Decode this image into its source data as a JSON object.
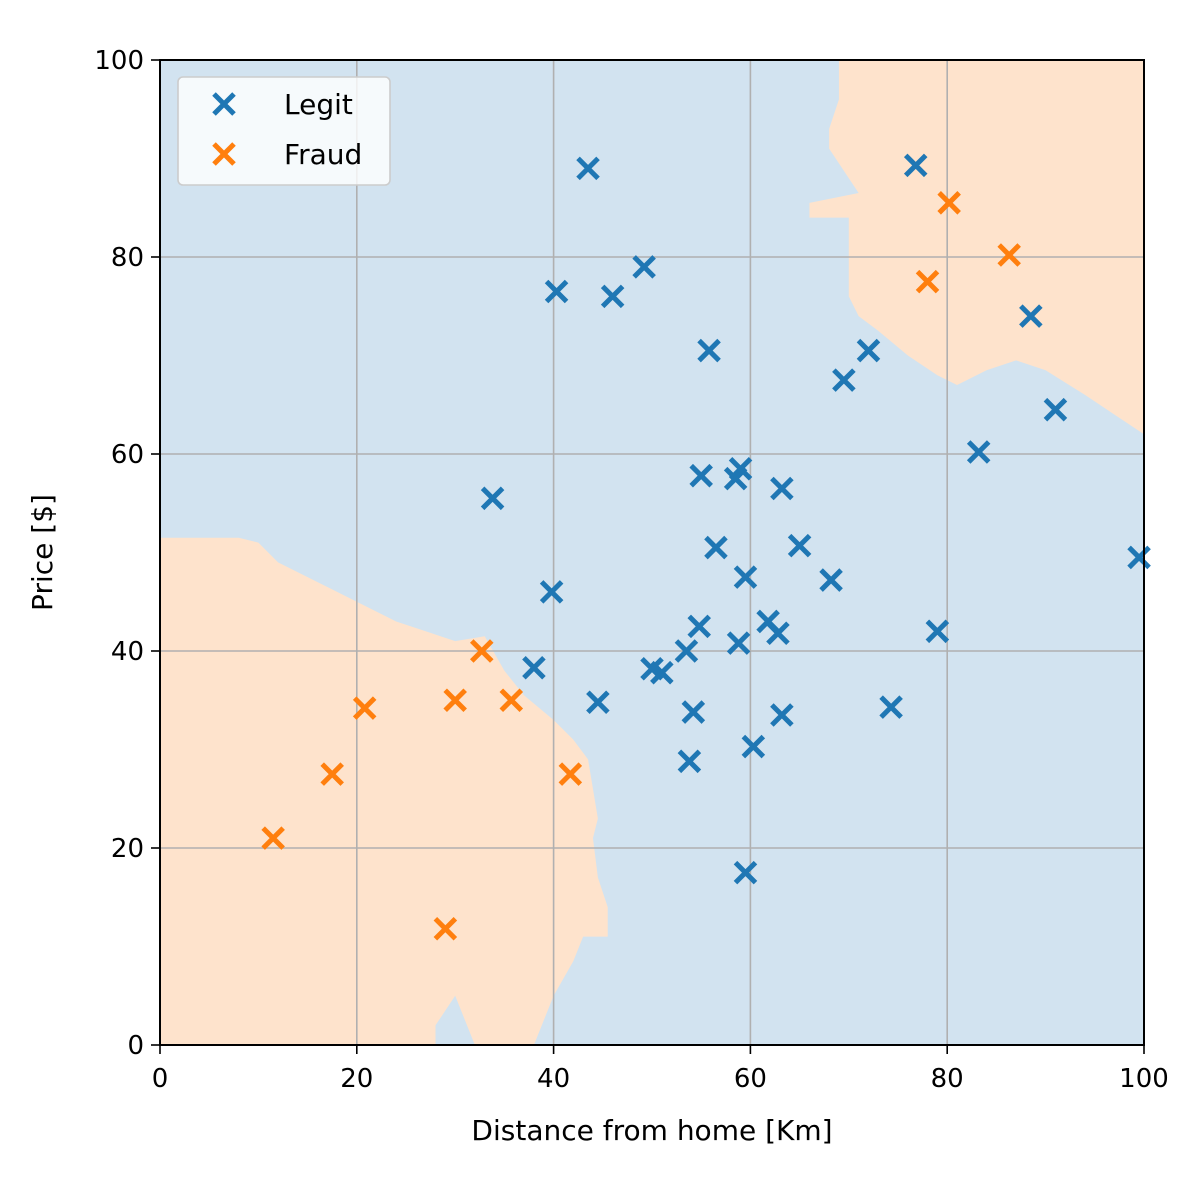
{
  "chart_data": {
    "type": "scatter",
    "xlabel": "Distance from home [Km]",
    "ylabel": "Price [$]",
    "xlim": [
      0,
      100
    ],
    "ylim": [
      0,
      100
    ],
    "xticks": [
      0,
      20,
      40,
      60,
      80,
      100
    ],
    "yticks": [
      0,
      20,
      40,
      60,
      80,
      100
    ],
    "grid": true,
    "legend_position": "top-left",
    "background_regions": {
      "legit_color": "#d2e3f0",
      "fraud_color": "#fee3cc",
      "fraud_regions": [
        {
          "name": "lower-left-fraud-region",
          "points": [
            [
              0,
              51.5
            ],
            [
              8,
              51.5
            ],
            [
              10,
              51
            ],
            [
              12,
              49
            ],
            [
              15,
              47.5
            ],
            [
              18,
              46
            ],
            [
              20,
              45
            ],
            [
              22,
              44
            ],
            [
              24,
              43
            ],
            [
              27,
              42
            ],
            [
              30,
              41
            ],
            [
              33,
              41.5
            ],
            [
              35,
              38
            ],
            [
              37,
              35.5
            ],
            [
              40,
              33
            ],
            [
              42,
              31
            ],
            [
              43.5,
              29
            ],
            [
              44.5,
              23
            ],
            [
              44,
              21
            ],
            [
              44.5,
              17
            ],
            [
              45.5,
              14
            ],
            [
              45.5,
              11
            ],
            [
              43,
              11
            ],
            [
              42,
              8.5
            ],
            [
              40,
              5
            ],
            [
              38,
              0
            ],
            [
              32,
              0
            ],
            [
              30,
              5
            ],
            [
              28,
              2
            ],
            [
              28,
              0
            ],
            [
              0,
              0
            ]
          ]
        },
        {
          "name": "upper-right-fraud-region",
          "points": [
            [
              69,
              100
            ],
            [
              100,
              100
            ],
            [
              100,
              62
            ],
            [
              97,
              64
            ],
            [
              94,
              66
            ],
            [
              90,
              68.5
            ],
            [
              87,
              69.5
            ],
            [
              84,
              68.5
            ],
            [
              81,
              67
            ],
            [
              79,
              68
            ],
            [
              76,
              70
            ],
            [
              73,
              72.5
            ],
            [
              71,
              74
            ],
            [
              70,
              76
            ],
            [
              70,
              79
            ],
            [
              70,
              84
            ],
            [
              66,
              84
            ],
            [
              66,
              85.5
            ],
            [
              71,
              86.5
            ],
            [
              68,
              91
            ],
            [
              68,
              93
            ],
            [
              69,
              96
            ]
          ]
        }
      ]
    },
    "series": [
      {
        "name": "Legit",
        "color": "#1f77b4",
        "points": [
          [
            43.5,
            89
          ],
          [
            40.3,
            76.5
          ],
          [
            46,
            76
          ],
          [
            49.2,
            79
          ],
          [
            55.8,
            70.5
          ],
          [
            33.8,
            55.5
          ],
          [
            39.8,
            46
          ],
          [
            38,
            38.3
          ],
          [
            44.5,
            34.8
          ],
          [
            50,
            38.2
          ],
          [
            51,
            37.8
          ],
          [
            53.5,
            40
          ],
          [
            54.8,
            42.5
          ],
          [
            54.2,
            33.8
          ],
          [
            53.8,
            28.8
          ],
          [
            55,
            57.8
          ],
          [
            58.5,
            57.5
          ],
          [
            59,
            58.5
          ],
          [
            56.5,
            50.5
          ],
          [
            59.5,
            47.5
          ],
          [
            58.8,
            40.8
          ],
          [
            61.8,
            43
          ],
          [
            62.8,
            41.8
          ],
          [
            63.2,
            56.5
          ],
          [
            65,
            50.7
          ],
          [
            68.2,
            47.2
          ],
          [
            63.2,
            33.5
          ],
          [
            60.3,
            30.3
          ],
          [
            59.5,
            17.5
          ],
          [
            69.5,
            67.5
          ],
          [
            72,
            70.5
          ],
          [
            76.8,
            89.3
          ],
          [
            88.5,
            74
          ],
          [
            91,
            64.5
          ],
          [
            83.2,
            60.2
          ],
          [
            79,
            42
          ],
          [
            74.3,
            34.3
          ],
          [
            99.5,
            49.5
          ]
        ]
      },
      {
        "name": "Fraud",
        "color": "#ff7f0e",
        "points": [
          [
            11.5,
            21
          ],
          [
            17.5,
            27.5
          ],
          [
            20.8,
            34.2
          ],
          [
            30,
            35
          ],
          [
            32.7,
            40
          ],
          [
            35.7,
            35
          ],
          [
            29,
            11.8
          ],
          [
            41.7,
            27.5
          ],
          [
            80.2,
            85.5
          ],
          [
            78,
            77.5
          ],
          [
            86.3,
            80.2
          ]
        ]
      }
    ]
  }
}
